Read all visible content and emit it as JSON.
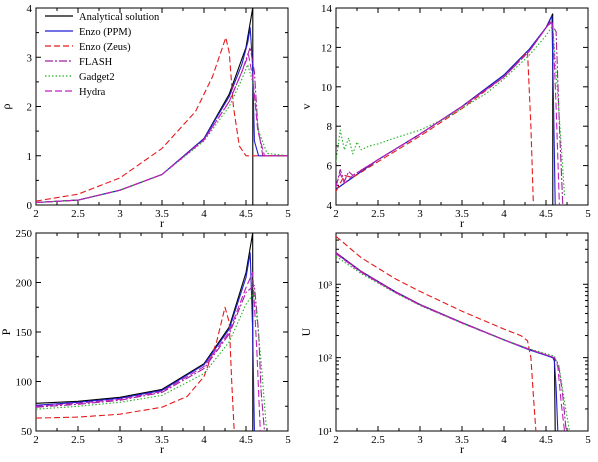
{
  "chart_data": [
    {
      "id": "rho",
      "type": "line",
      "xlabel": "r",
      "ylabel": "ρ",
      "xlim": [
        2,
        5
      ],
      "ylim": [
        0,
        4
      ],
      "yscale": "linear",
      "xticks": [
        2,
        2.5,
        3,
        3.5,
        4,
        4.5,
        5
      ],
      "xtick_labels": [
        "2",
        "2.5",
        "3",
        "3.5",
        "4",
        "4.5",
        "5"
      ],
      "yticks": [
        0,
        1,
        2,
        3,
        4
      ],
      "ytick_labels": [
        "0",
        "1",
        "2",
        "3",
        "4"
      ],
      "legend": {
        "position": "top-left"
      },
      "series": [
        {
          "name": "Analytical solution",
          "color": "#000000",
          "dash": "solid",
          "x": [
            2.0,
            2.5,
            3.0,
            3.5,
            4.0,
            4.3,
            4.5,
            4.58,
            4.581,
            4.581,
            4.62,
            4.8,
            5.0
          ],
          "y": [
            0.05,
            0.1,
            0.3,
            0.62,
            1.35,
            2.25,
            3.2,
            4.0,
            4.0,
            0.0,
            0.0,
            0.0,
            0.0
          ]
        },
        {
          "name": "Enzo (PPM)",
          "color": "#1f1fd0",
          "dash": "solid",
          "x": [
            2.0,
            2.5,
            3.0,
            3.5,
            4.0,
            4.3,
            4.45,
            4.52,
            4.55,
            4.58,
            4.6,
            4.65,
            5.0
          ],
          "y": [
            0.05,
            0.1,
            0.3,
            0.62,
            1.35,
            2.2,
            2.85,
            3.3,
            3.6,
            2.8,
            1.3,
            1.0,
            1.0
          ]
        },
        {
          "name": "Enzo (Zeus)",
          "color": "#e41a1c",
          "dash": "6 3",
          "x": [
            2.0,
            2.5,
            3.0,
            3.5,
            3.9,
            4.1,
            4.2,
            4.26,
            4.3,
            4.35,
            4.42,
            4.5,
            5.0
          ],
          "y": [
            0.08,
            0.22,
            0.55,
            1.15,
            1.9,
            2.6,
            3.1,
            3.4,
            3.1,
            2.0,
            1.2,
            1.0,
            1.0
          ]
        },
        {
          "name": "FLASH",
          "color": "#a020a0",
          "dash": "8 2 2 2",
          "x": [
            2.0,
            2.5,
            3.0,
            3.5,
            4.0,
            4.3,
            4.45,
            4.55,
            4.6,
            4.64,
            4.7,
            5.0
          ],
          "y": [
            0.05,
            0.1,
            0.3,
            0.62,
            1.33,
            2.1,
            2.7,
            3.2,
            2.7,
            1.6,
            1.0,
            1.0
          ]
        },
        {
          "name": "Gadget2",
          "color": "#22b022",
          "dash": "1.5 2",
          "x": [
            2.0,
            2.5,
            3.0,
            3.5,
            4.0,
            4.3,
            4.45,
            4.52,
            4.58,
            4.65,
            4.75,
            5.0
          ],
          "y": [
            0.05,
            0.1,
            0.3,
            0.62,
            1.3,
            2.0,
            2.55,
            2.85,
            2.5,
            1.5,
            1.05,
            1.0
          ]
        },
        {
          "name": "Hydra",
          "color": "#c020c0",
          "dash": "7 3",
          "x": [
            2.0,
            2.5,
            3.0,
            3.5,
            4.0,
            4.3,
            4.45,
            4.53,
            4.58,
            4.64,
            4.72,
            5.0
          ],
          "y": [
            0.05,
            0.1,
            0.3,
            0.62,
            1.32,
            2.1,
            2.7,
            3.05,
            2.6,
            1.5,
            1.0,
            1.0
          ]
        }
      ]
    },
    {
      "id": "v",
      "type": "line",
      "xlabel": "r",
      "ylabel": "v",
      "xlim": [
        2,
        5
      ],
      "ylim": [
        4,
        14
      ],
      "yscale": "linear",
      "xticks": [
        2,
        2.5,
        3,
        3.5,
        4,
        4.5,
        5
      ],
      "xtick_labels": [
        "2",
        "2.5",
        "3",
        "3.5",
        "4",
        "4.5",
        "5"
      ],
      "yticks": [
        4,
        6,
        8,
        10,
        12,
        14
      ],
      "ytick_labels": [
        "4",
        "6",
        "8",
        "10",
        "12",
        "14"
      ],
      "series": [
        {
          "name": "Analytical solution",
          "color": "#000000",
          "dash": "solid",
          "x": [
            2.0,
            2.5,
            3.0,
            3.5,
            4.0,
            4.3,
            4.5,
            4.58,
            4.581
          ],
          "y": [
            4.8,
            6.3,
            7.6,
            9.0,
            10.6,
            11.9,
            13.0,
            13.7,
            4.0
          ]
        },
        {
          "name": "Enzo (PPM)",
          "color": "#1f1fd0",
          "dash": "solid",
          "x": [
            2.0,
            2.5,
            3.0,
            3.5,
            4.0,
            4.3,
            4.5,
            4.57,
            4.59,
            4.61
          ],
          "y": [
            4.8,
            6.3,
            7.6,
            9.0,
            10.6,
            11.9,
            13.0,
            13.6,
            9.0,
            4.0
          ]
        },
        {
          "name": "Enzo (Zeus)",
          "color": "#e41a1c",
          "dash": "6 3",
          "x": [
            2.0,
            2.1,
            2.2,
            2.5,
            3.0,
            3.5,
            4.0,
            4.2,
            4.28,
            4.32,
            4.35
          ],
          "y": [
            4.7,
            5.5,
            5.4,
            6.2,
            7.5,
            8.9,
            10.5,
            11.4,
            11.8,
            8.0,
            4.0
          ]
        },
        {
          "name": "FLASH",
          "color": "#a020a0",
          "dash": "8 2 2 2",
          "x": [
            2.0,
            2.05,
            2.1,
            2.15,
            2.2,
            2.5,
            3.0,
            3.5,
            4.0,
            4.3,
            4.55,
            4.62,
            4.66,
            4.7
          ],
          "y": [
            4.9,
            5.8,
            5.2,
            5.7,
            5.5,
            6.3,
            7.6,
            9.0,
            10.5,
            11.8,
            13.3,
            12.8,
            8.0,
            4.0
          ]
        },
        {
          "name": "Gadget2",
          "color": "#22b022",
          "dash": "1.5 2",
          "x": [
            2.0,
            2.05,
            2.1,
            2.15,
            2.2,
            2.25,
            2.3,
            2.4,
            2.5,
            2.7,
            3.0,
            3.3,
            3.5,
            3.8,
            4.0,
            4.3,
            4.5,
            4.58,
            4.65,
            4.72
          ],
          "y": [
            6.2,
            7.8,
            6.8,
            7.4,
            6.6,
            7.2,
            6.8,
            7.0,
            7.1,
            7.4,
            7.8,
            8.4,
            8.9,
            9.7,
            10.4,
            11.6,
            12.6,
            13.1,
            9.0,
            4.5
          ]
        },
        {
          "name": "Hydra",
          "color": "#c020c0",
          "dash": "7 3",
          "x": [
            2.0,
            2.05,
            2.1,
            2.2,
            2.5,
            3.0,
            3.5,
            4.0,
            4.3,
            4.52,
            4.58,
            4.62,
            4.66
          ],
          "y": [
            5.0,
            5.6,
            5.1,
            5.5,
            6.3,
            7.6,
            9.0,
            10.5,
            11.8,
            13.1,
            13.3,
            9.0,
            4.0
          ]
        }
      ]
    },
    {
      "id": "P",
      "type": "line",
      "xlabel": "r",
      "ylabel": "P",
      "xlim": [
        2,
        5
      ],
      "ylim": [
        50,
        250
      ],
      "yscale": "linear",
      "xticks": [
        2,
        2.5,
        3,
        3.5,
        4,
        4.5,
        5
      ],
      "xtick_labels": [
        "2",
        "2.5",
        "3",
        "3.5",
        "4",
        "4.5",
        "5"
      ],
      "yticks": [
        50,
        100,
        150,
        200,
        250
      ],
      "ytick_labels": [
        "50",
        "100",
        "150",
        "200",
        "250"
      ],
      "series": [
        {
          "name": "Analytical solution",
          "color": "#000000",
          "dash": "solid",
          "x": [
            2.0,
            2.5,
            3.0,
            3.5,
            4.0,
            4.3,
            4.5,
            4.58,
            4.581
          ],
          "y": [
            78,
            80,
            84,
            92,
            118,
            155,
            210,
            250,
            50
          ]
        },
        {
          "name": "Enzo (PPM)",
          "color": "#1f1fd0",
          "dash": "solid",
          "x": [
            2.0,
            2.5,
            3.0,
            3.5,
            4.0,
            4.3,
            4.5,
            4.55,
            4.58,
            4.6
          ],
          "y": [
            76,
            79,
            83,
            91,
            117,
            153,
            205,
            230,
            150,
            50
          ]
        },
        {
          "name": "Enzo (Zeus)",
          "color": "#e41a1c",
          "dash": "6 3",
          "x": [
            2.0,
            2.5,
            3.0,
            3.5,
            3.8,
            4.0,
            4.15,
            4.25,
            4.3,
            4.33,
            4.36
          ],
          "y": [
            63,
            64,
            67,
            74,
            85,
            105,
            140,
            175,
            160,
            100,
            50
          ]
        },
        {
          "name": "FLASH",
          "color": "#a020a0",
          "dash": "8 2 2 2",
          "x": [
            2.0,
            2.5,
            3.0,
            3.5,
            4.0,
            4.3,
            4.5,
            4.6,
            4.65,
            4.68,
            4.72
          ],
          "y": [
            74,
            77,
            81,
            89,
            113,
            148,
            190,
            197,
            150,
            90,
            50
          ]
        },
        {
          "name": "Gadget2",
          "color": "#22b022",
          "dash": "1.5 2",
          "x": [
            2.0,
            2.5,
            3.0,
            3.5,
            4.0,
            4.3,
            4.5,
            4.6,
            4.68,
            4.74
          ],
          "y": [
            72,
            75,
            79,
            86,
            108,
            140,
            178,
            190,
            120,
            55
          ]
        },
        {
          "name": "Hydra",
          "color": "#c020c0",
          "dash": "7 3",
          "x": [
            2.0,
            2.5,
            3.0,
            3.5,
            4.0,
            4.3,
            4.5,
            4.58,
            4.63,
            4.67
          ],
          "y": [
            75,
            78,
            82,
            90,
            115,
            150,
            195,
            210,
            130,
            50
          ]
        }
      ]
    },
    {
      "id": "U",
      "type": "line",
      "xlabel": "r",
      "ylabel": "U",
      "xlim": [
        2,
        5
      ],
      "ylim": [
        10,
        5000
      ],
      "yscale": "log",
      "yreverse": true,
      "xticks": [
        2,
        2.5,
        3,
        3.5,
        4,
        4.5,
        5
      ],
      "xtick_labels": [
        "2",
        "2.5",
        "3",
        "3.5",
        "4",
        "4.5",
        "5"
      ],
      "yticks": [
        1000,
        100,
        10
      ],
      "ytick_labels": [
        "10³",
        "10²",
        "10¹"
      ],
      "series": [
        {
          "name": "Analytical solution",
          "color": "#000000",
          "dash": "solid",
          "x": [
            2.0,
            2.3,
            2.7,
            3.0,
            3.5,
            4.0,
            4.3,
            4.58,
            4.6,
            4.61,
            4.62
          ],
          "y": [
            2700,
            1500,
            800,
            530,
            300,
            175,
            130,
            100,
            100,
            10,
            10
          ]
        },
        {
          "name": "Enzo (PPM)",
          "color": "#1f1fd0",
          "dash": "solid",
          "x": [
            2.0,
            2.3,
            2.7,
            3.0,
            3.5,
            4.0,
            4.3,
            4.58,
            4.6,
            4.62,
            4.64
          ],
          "y": [
            2650,
            1480,
            790,
            525,
            298,
            174,
            128,
            100,
            90,
            40,
            10
          ]
        },
        {
          "name": "Enzo (Zeus)",
          "color": "#e41a1c",
          "dash": "6 3",
          "x": [
            2.0,
            2.3,
            2.7,
            3.0,
            3.5,
            4.0,
            4.2,
            4.28,
            4.32,
            4.35,
            4.38
          ],
          "y": [
            4500,
            2300,
            1200,
            800,
            430,
            245,
            200,
            170,
            100,
            30,
            10
          ]
        },
        {
          "name": "FLASH",
          "color": "#a020a0",
          "dash": "8 2 2 2",
          "x": [
            2.0,
            2.3,
            2.7,
            3.0,
            3.5,
            4.0,
            4.3,
            4.6,
            4.65,
            4.7,
            4.74
          ],
          "y": [
            2700,
            1500,
            800,
            530,
            300,
            175,
            130,
            100,
            80,
            30,
            10
          ]
        },
        {
          "name": "Gadget2",
          "color": "#22b022",
          "dash": "1.5 2",
          "x": [
            2.0,
            2.3,
            2.7,
            3.0,
            3.5,
            4.0,
            4.3,
            4.6,
            4.66,
            4.72,
            4.78
          ],
          "y": [
            2400,
            1400,
            770,
            515,
            295,
            175,
            132,
            105,
            70,
            25,
            10
          ]
        },
        {
          "name": "Hydra",
          "color": "#c020c0",
          "dash": "7 3",
          "x": [
            2.0,
            2.3,
            2.7,
            3.0,
            3.5,
            4.0,
            4.3,
            4.6,
            4.64,
            4.68,
            4.72
          ],
          "y": [
            2600,
            1450,
            780,
            520,
            296,
            174,
            130,
            100,
            75,
            25,
            10
          ]
        }
      ]
    }
  ]
}
